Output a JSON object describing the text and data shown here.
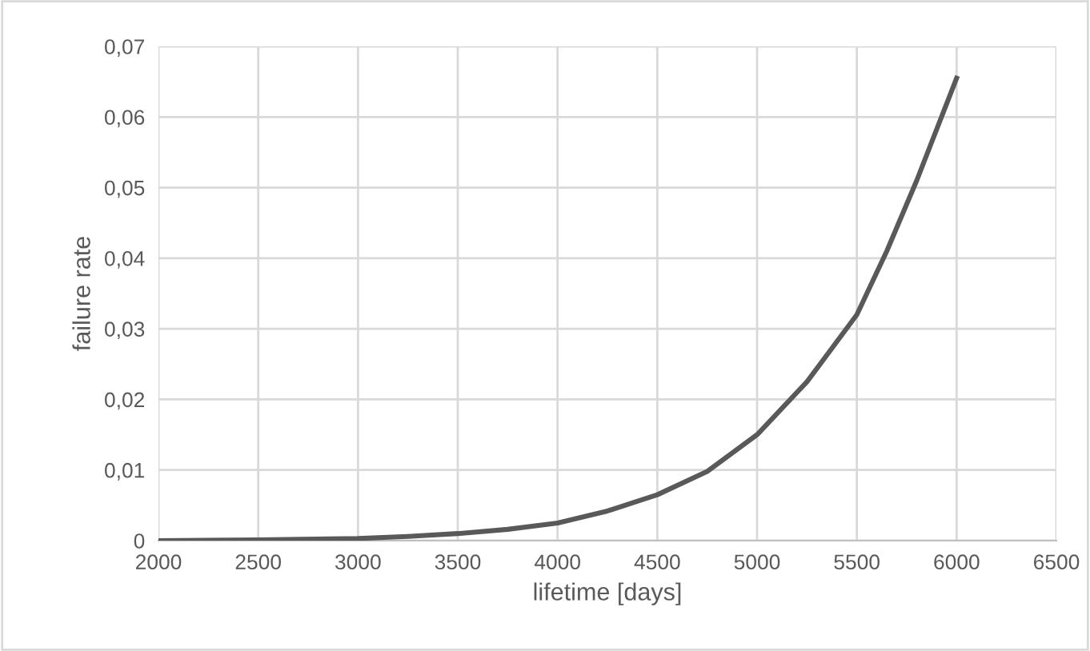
{
  "chart_data": {
    "type": "line",
    "xlabel": "lifetime [days]",
    "ylabel": "failure rate",
    "x": [
      2000,
      2500,
      3000,
      3250,
      3500,
      3750,
      4000,
      4250,
      4500,
      4750,
      5000,
      5250,
      5500,
      5650,
      5800,
      6000
    ],
    "series": [
      {
        "color": "#595959",
        "values": [
          0,
          0.0001,
          0.0003,
          0.0006,
          0.001,
          0.0016,
          0.0025,
          0.0042,
          0.0065,
          0.0098,
          0.015,
          0.0225,
          0.032,
          0.041,
          0.051,
          0.0655
        ]
      }
    ],
    "xlim": [
      2000,
      6500
    ],
    "ylim": [
      0,
      0.07
    ],
    "xticks": [
      2000,
      2500,
      3000,
      3500,
      4000,
      4500,
      5000,
      5500,
      6000,
      6500
    ],
    "yticks": [
      0,
      {
        "value": 0.01,
        "label": "0,01"
      },
      {
        "value": 0.02,
        "label": "0,02"
      },
      {
        "value": 0.03,
        "label": "0,03"
      },
      {
        "value": 0.04,
        "label": "0,04"
      },
      {
        "value": 0.05,
        "label": "0,05"
      },
      {
        "value": 0.06,
        "label": "0,06"
      },
      {
        "value": 0.07,
        "label": "0,07"
      }
    ],
    "grid": true,
    "marker": "none",
    "line_style": "solid"
  }
}
